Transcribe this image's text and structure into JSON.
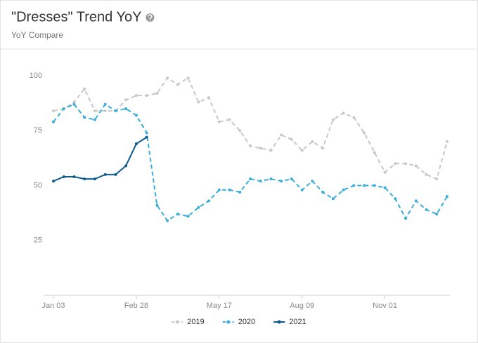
{
  "chart_data": {
    "type": "line",
    "title": "\"Dresses\" Trend YoY",
    "subtitle": "YoY Compare",
    "categories": [
      "Jan 03",
      null,
      null,
      null,
      null,
      null,
      null,
      null,
      "Feb 28",
      null,
      null,
      null,
      null,
      null,
      null,
      null,
      "May 17",
      null,
      null,
      null,
      null,
      null,
      null,
      null,
      "Aug 09",
      null,
      null,
      null,
      null,
      null,
      null,
      null,
      "Nov 01",
      null,
      null,
      null,
      null,
      null,
      null
    ],
    "series": [
      {
        "name": "2019",
        "color": "#c8c8c8",
        "dashed": true,
        "values": [
          84,
          85,
          88,
          94,
          84,
          84,
          84,
          89,
          91,
          91,
          92,
          99,
          96,
          99,
          88,
          90,
          79,
          80,
          75,
          68,
          67,
          66,
          73,
          71,
          66,
          70,
          67,
          80,
          83,
          81,
          74,
          65,
          56,
          60,
          60,
          59,
          55,
          53,
          70
        ]
      },
      {
        "name": "2020",
        "color": "#3aaed8",
        "dashed": true,
        "values": [
          79,
          85,
          87,
          81,
          80,
          87,
          84,
          85,
          82,
          74,
          41,
          34,
          37,
          36,
          40,
          43,
          48,
          48,
          47,
          53,
          52,
          53,
          52,
          53,
          48,
          52,
          47,
          44,
          48,
          50,
          50,
          50,
          49,
          44,
          35,
          43,
          39,
          37,
          45
        ]
      },
      {
        "name": "2021",
        "color": "#0d5a8f",
        "dashed": false,
        "values": [
          52,
          54,
          54,
          53,
          53,
          55,
          55,
          59,
          69,
          72,
          null,
          null,
          null,
          null,
          null,
          null,
          null,
          null,
          null,
          null,
          null,
          null,
          null,
          null,
          null,
          null,
          null,
          null,
          null,
          null,
          null,
          null,
          null,
          null,
          null,
          null,
          null,
          null,
          null
        ]
      }
    ],
    "ylim": [
      0,
      100
    ],
    "yticks": [
      25,
      50,
      75,
      100
    ],
    "grid": false,
    "legend": "bottom"
  }
}
